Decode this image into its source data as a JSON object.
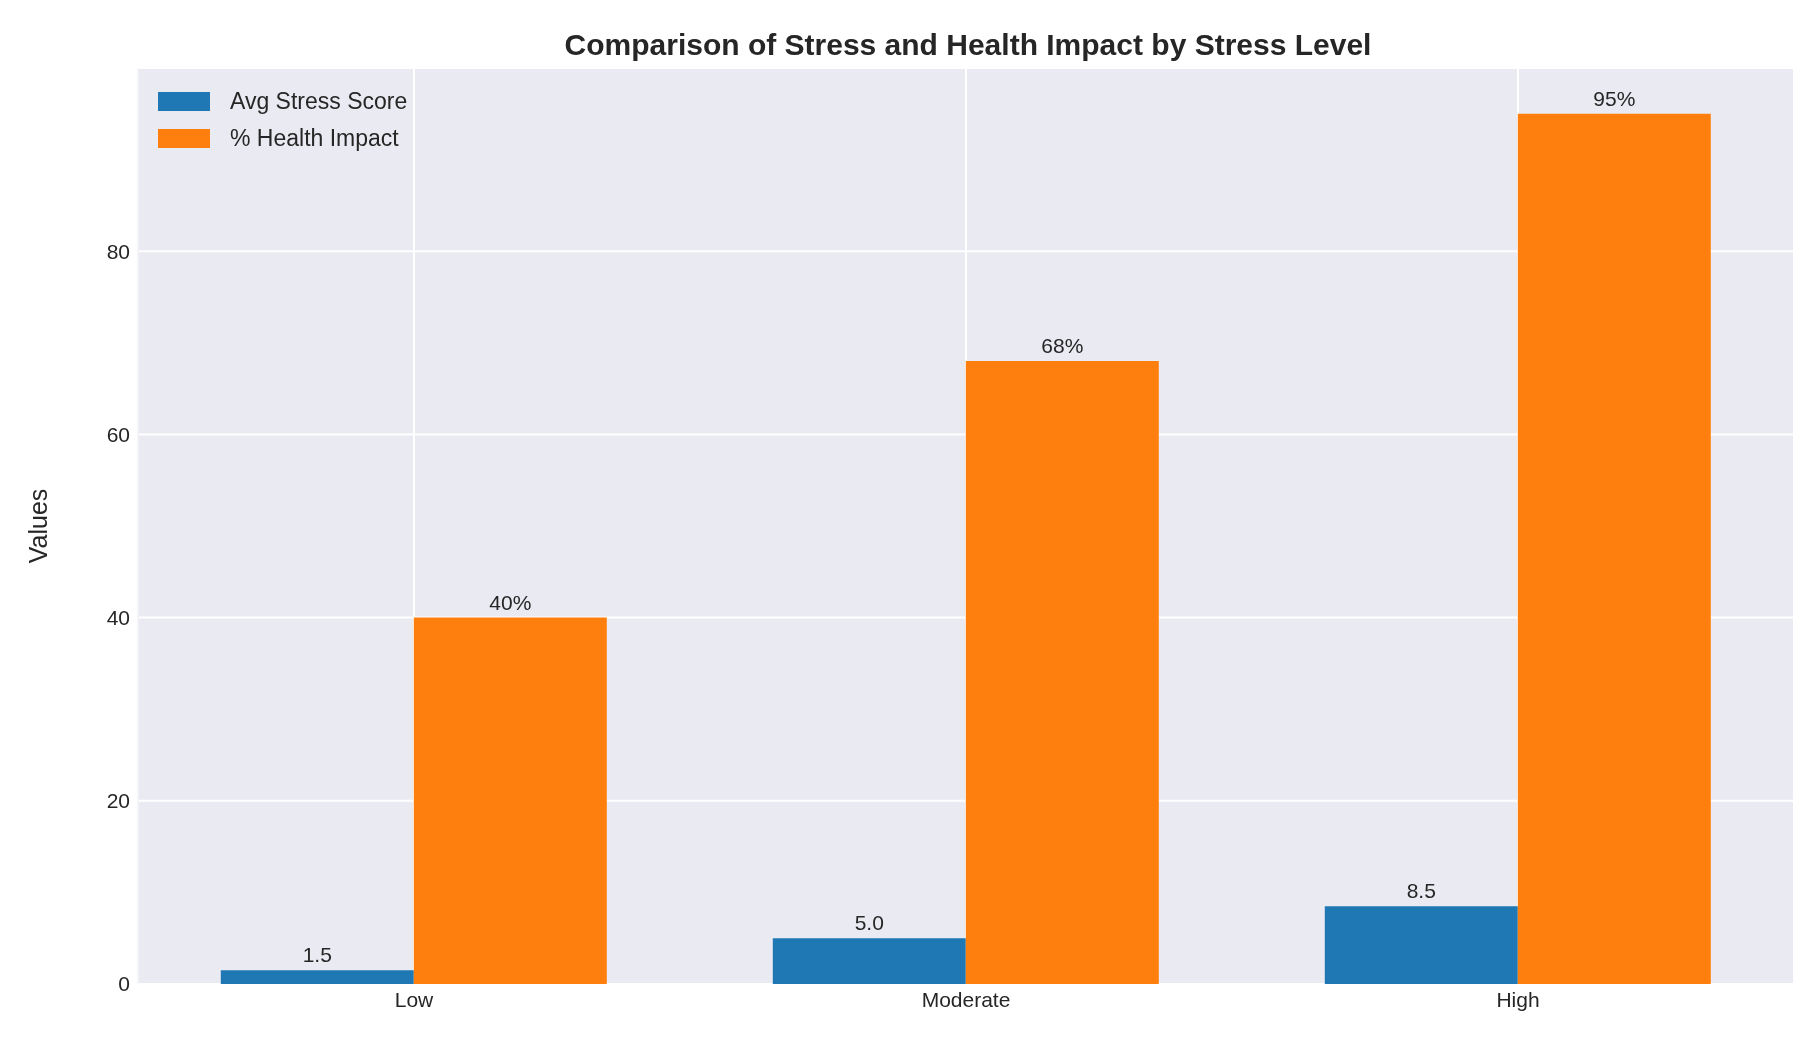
{
  "chart_data": {
    "type": "bar",
    "title": "Comparison of Stress and Health Impact by Stress Level",
    "ylabel": "Values",
    "categories": [
      "Low",
      "Moderate",
      "High"
    ],
    "series": [
      {
        "name": "Avg Stress Score",
        "color": "#1f77b4",
        "values": [
          1.5,
          5.0,
          8.5
        ],
        "value_labels": [
          "1.5",
          "5.0",
          "8.5"
        ]
      },
      {
        "name": "% Health Impact",
        "color": "#ff7f0e",
        "values": [
          40,
          68,
          95
        ],
        "value_labels": [
          "40%",
          "68%",
          "95%"
        ]
      }
    ],
    "ylim": [
      0,
      100
    ],
    "yticks": [
      0,
      20,
      40,
      60,
      80
    ],
    "grid": true,
    "legend": "top left"
  }
}
